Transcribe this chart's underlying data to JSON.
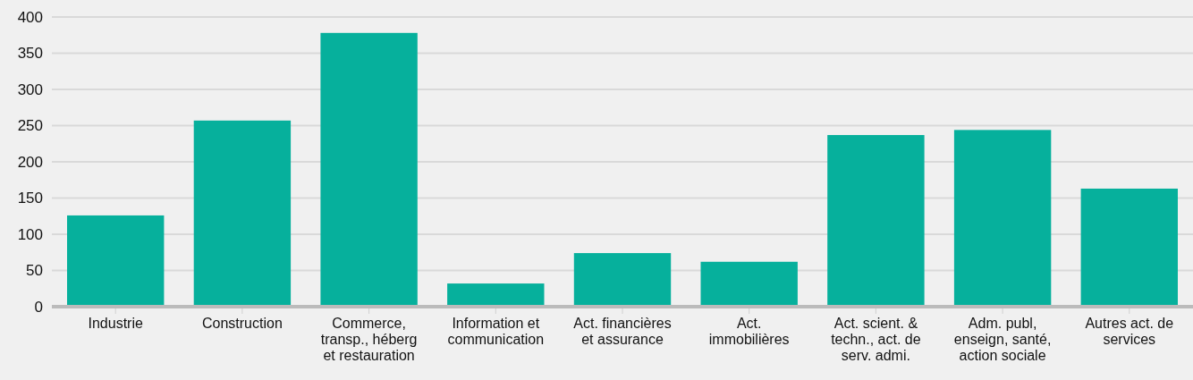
{
  "chart_data": {
    "type": "bar",
    "categories": [
      "Industrie",
      "Construction",
      "Commerce, transp., héberg et restauration",
      "Information et communication",
      "Act. financières et assurance",
      "Act. immobilières",
      "Act. scient. & techn., act. de serv. admi.",
      "Adm. publ, enseign, santé, action sociale",
      "Autres act. de services"
    ],
    "values": [
      126,
      257,
      378,
      32,
      74,
      62,
      237,
      244,
      163
    ],
    "color": "#06b09c",
    "ylim": [
      0,
      400
    ],
    "yticks": [
      0,
      50,
      100,
      150,
      200,
      250,
      300,
      350,
      400
    ],
    "grid": "y"
  }
}
